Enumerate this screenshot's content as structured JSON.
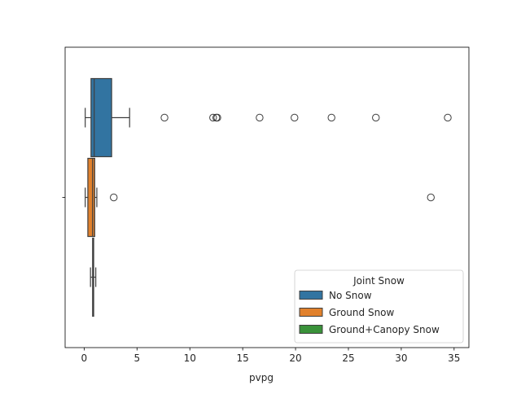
{
  "chart_data": {
    "type": "box",
    "orientation": "horizontal",
    "title": "",
    "xlabel": "pvpg",
    "ylabel": "",
    "xlim": [
      -1.8,
      36.4
    ],
    "xticks": [
      {
        "value": 0,
        "label": "0"
      },
      {
        "value": 5,
        "label": "5"
      },
      {
        "value": 10,
        "label": "10"
      },
      {
        "value": 15,
        "label": "15"
      },
      {
        "value": 20,
        "label": "20"
      },
      {
        "value": 25,
        "label": "25"
      },
      {
        "value": 30,
        "label": "30"
      },
      {
        "value": 35,
        "label": "35"
      }
    ],
    "categories": [
      ""
    ],
    "grid": false,
    "legend": {
      "title": "Joint Snow",
      "placement": "bottom-right",
      "entries": [
        "No Snow",
        "Ground Snow",
        "Ground+Canopy Snow"
      ]
    },
    "series": [
      {
        "name": "No Snow",
        "color": "#3274a1",
        "whisker_low": 0.1,
        "q1": 0.65,
        "median": 0.95,
        "q3": 2.6,
        "whisker_high": 4.3,
        "outliers": [
          7.6,
          12.2,
          12.5,
          12.6,
          16.6,
          19.9,
          23.4,
          27.6,
          34.4
        ]
      },
      {
        "name": "Ground Snow",
        "color": "#e1812c",
        "whisker_low": 0.1,
        "q1": 0.35,
        "median": 0.8,
        "q3": 1.0,
        "whisker_high": 1.2,
        "outliers": [
          2.8,
          32.8
        ]
      },
      {
        "name": "Ground+Canopy Snow",
        "color": "#3a923a",
        "whisker_low": 0.6,
        "q1": 0.8,
        "median": 0.85,
        "q3": 0.9,
        "whisker_high": 1.1,
        "outliers": []
      }
    ]
  }
}
